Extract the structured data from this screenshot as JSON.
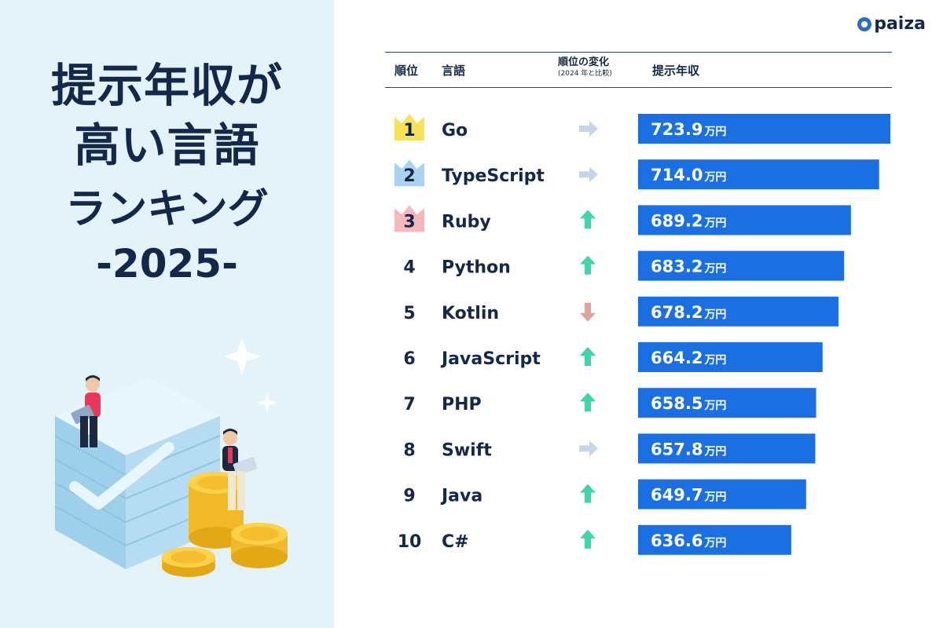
{
  "title": {
    "line1": "提示年収が",
    "line2": "高い言語",
    "line3": "ランキング",
    "line4": "-2025-"
  },
  "logo": {
    "text": "paiza"
  },
  "header": {
    "rank": "順位",
    "language": "言語",
    "change": "順位の変化",
    "change_sub": "(2024 年と比較)",
    "salary": "提示年収"
  },
  "chart_data": {
    "type": "bar",
    "unit": "万円",
    "categories": [
      "Go",
      "TypeScript",
      "Ruby",
      "Python",
      "Kotlin",
      "JavaScript",
      "PHP",
      "Swift",
      "Java",
      "C#"
    ],
    "ranks": [
      "1",
      "2",
      "3",
      "4",
      "5",
      "6",
      "7",
      "8",
      "9",
      "10"
    ],
    "values": [
      723.9,
      714.0,
      689.2,
      683.2,
      678.2,
      664.2,
      658.5,
      657.8,
      649.7,
      636.6
    ],
    "labels": [
      "723.9",
      "714.0",
      "689.2",
      "683.2",
      "678.2",
      "664.2",
      "658.5",
      "657.8",
      "649.7",
      "636.6"
    ],
    "changes": [
      "same",
      "same",
      "up",
      "up",
      "down",
      "up",
      "up",
      "same",
      "up",
      "up"
    ],
    "bar_color": "#1a6fe3",
    "up_color": "#3ed6a8",
    "down_color": "#e0a29a",
    "same_color": "#c7d6e6",
    "crown_colors": [
      "#f7e25a",
      "#a9d3ef",
      "#f5b9bd"
    ]
  }
}
